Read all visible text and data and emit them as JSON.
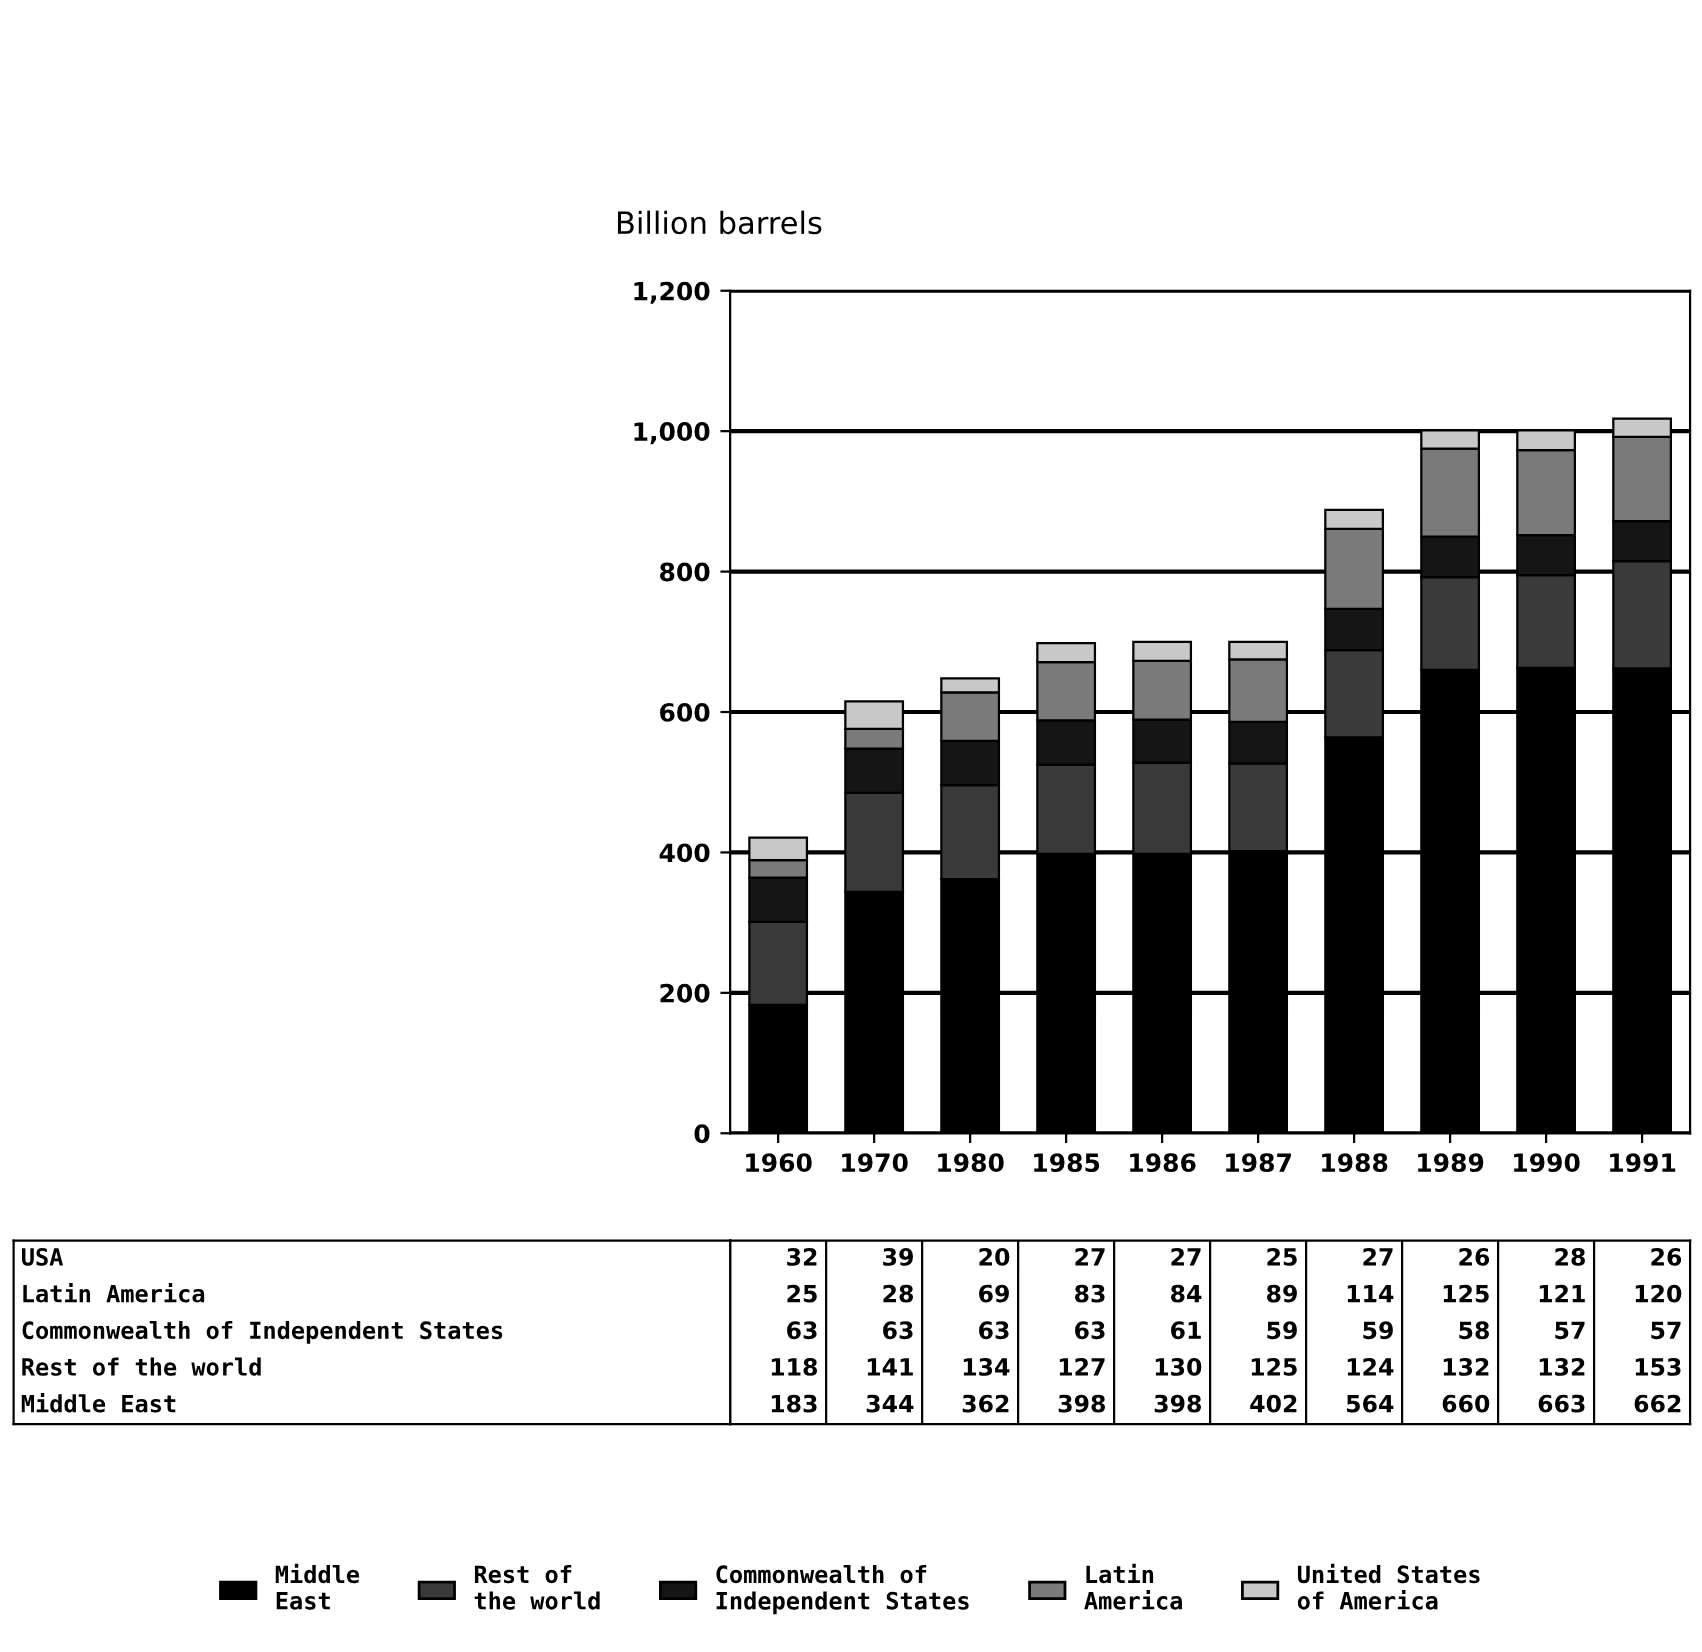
{
  "chart_data": {
    "type": "bar",
    "stacked": true,
    "ylabel": "Billion barrels",
    "categories": [
      "1960",
      "1970",
      "1980",
      "1985",
      "1986",
      "1987",
      "1988",
      "1989",
      "1990",
      "1991"
    ],
    "series": [
      {
        "name": "Middle\nEast",
        "color": "#000000",
        "values": [
          183,
          344,
          362,
          398,
          398,
          402,
          564,
          660,
          663,
          662
        ]
      },
      {
        "name": "Rest of\nthe world",
        "color": "#3a3a3a",
        "values": [
          118,
          141,
          134,
          127,
          130,
          125,
          124,
          132,
          132,
          153
        ]
      },
      {
        "name": "Commonwealth of\nIndependent States",
        "color": "#151515",
        "values": [
          63,
          63,
          63,
          63,
          61,
          59,
          59,
          58,
          57,
          57
        ]
      },
      {
        "name": "Latin\nAmerica",
        "color": "#7a7a7a",
        "values": [
          25,
          28,
          69,
          83,
          84,
          89,
          114,
          125,
          121,
          120
        ]
      },
      {
        "name": "United States\nof America",
        "color": "#c8c8c8",
        "values": [
          32,
          39,
          20,
          27,
          27,
          25,
          27,
          26,
          28,
          26
        ]
      }
    ],
    "annotations": [
      "USA",
      "Latin America",
      "Commonwealth of Independent States",
      "Rest of the world",
      "Middle East"
    ],
    "ylim": [
      0,
      1200
    ],
    "yticks": [
      0,
      200,
      400,
      600,
      800,
      {
        "value": 1000,
        "label": "1,000"
      },
      {
        "value": 1200,
        "label": "1,200"
      }
    ],
    "grid": "y",
    "legend": "bottom",
    "data_labels": true
  }
}
